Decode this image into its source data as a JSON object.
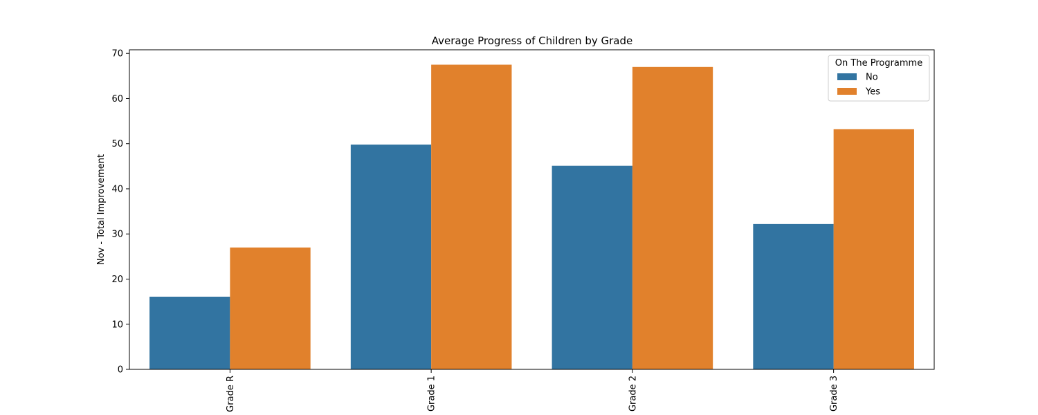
{
  "chart_data": {
    "type": "bar",
    "title": "Average Progress of Children by Grade",
    "xlabel": "",
    "ylabel": "Nov - Total Improvement",
    "categories": [
      "Grade R",
      "Grade 1",
      "Grade 2",
      "Grade 3"
    ],
    "series": [
      {
        "name": "No",
        "color": "#3274a1",
        "values": [
          16.1,
          49.8,
          45.1,
          32.2
        ]
      },
      {
        "name": "Yes",
        "color": "#e1812c",
        "values": [
          27.0,
          67.5,
          67.0,
          53.2
        ]
      }
    ],
    "ylim": [
      0,
      70.8
    ],
    "yticks": [
      0,
      10,
      20,
      30,
      40,
      50,
      60,
      70
    ],
    "grid": false,
    "legend": {
      "title": "On The Programme",
      "placement": "top-right"
    }
  }
}
